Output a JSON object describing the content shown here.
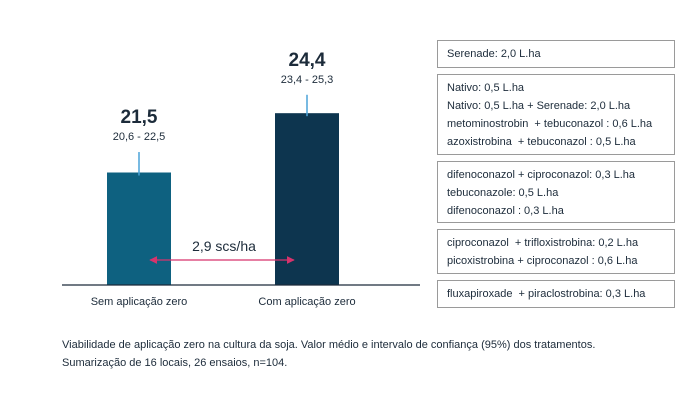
{
  "chart_data": {
    "type": "bar",
    "categories": [
      "Sem aplicação zero",
      "Com aplicação zero"
    ],
    "values": [
      21.5,
      24.4
    ],
    "value_labels": [
      "21,5",
      "24,4"
    ],
    "ci_labels": [
      "20,6 - 22,5",
      "23,4 - 25,3"
    ],
    "ci": [
      [
        20.6,
        22.5
      ],
      [
        23.4,
        25.3
      ]
    ],
    "bar_colors": [
      "#0e6180",
      "#0d354f"
    ],
    "difference_label": "2,9 scs/ha",
    "difference_arrow_color": "#d6336c",
    "ylim": [
      16,
      27
    ]
  },
  "legend": [
    [
      "Serenade: 2,0 L.ha"
    ],
    [
      "Nativo: 0,5 L.ha",
      "Nativo: 0,5 L.ha + Serenade: 2,0 L.ha",
      "metominostrobin  + tebuconazol : 0,6 L.ha",
      "azoxistrobina  + tebuconazol : 0,5 L.ha"
    ],
    [
      "difenoconazol + ciproconazol: 0,3 L.ha",
      "tebuconazole: 0,5 L.ha",
      "difenoconazol : 0,3 L.ha"
    ],
    [
      "ciproconazol  + trifloxistrobina: 0,2 L.ha",
      "picoxistrobina + ciproconazol : 0,6 L.ha"
    ],
    [
      "fluxapiroxade  + piraclostrobina: 0,3 L.ha"
    ]
  ],
  "caption": {
    "line1": "Viabilidade de aplicação zero na cultura da soja. Valor médio e intervalo de confiança (95%) dos tratamentos.",
    "line2": "Sumarização de 16 locais, 26 ensaios, n=104."
  }
}
